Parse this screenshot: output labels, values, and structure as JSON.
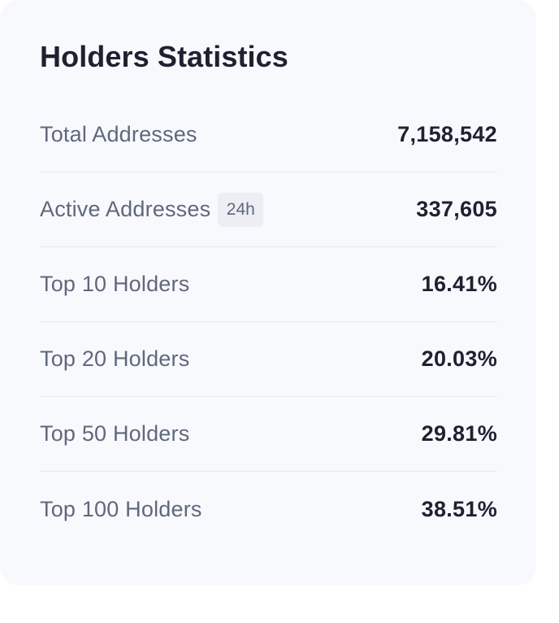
{
  "card": {
    "title": "Holders Statistics"
  },
  "stats": [
    {
      "label": "Total Addresses",
      "badge": "",
      "value": "7,158,542"
    },
    {
      "label": "Active Addresses",
      "badge": "24h",
      "value": "337,605"
    },
    {
      "label": "Top 10 Holders",
      "badge": "",
      "value": "16.41%"
    },
    {
      "label": "Top 20 Holders",
      "badge": "",
      "value": "20.03%"
    },
    {
      "label": "Top 50 Holders",
      "badge": "",
      "value": "29.81%"
    },
    {
      "label": "Top 100 Holders",
      "badge": "",
      "value": "38.51%"
    }
  ],
  "colors": {
    "card_background": "#f8f9fd",
    "label_text": "#5f687c",
    "value_text": "#1d2130",
    "divider": "#e7e9ef",
    "badge_background": "#eceef3"
  }
}
